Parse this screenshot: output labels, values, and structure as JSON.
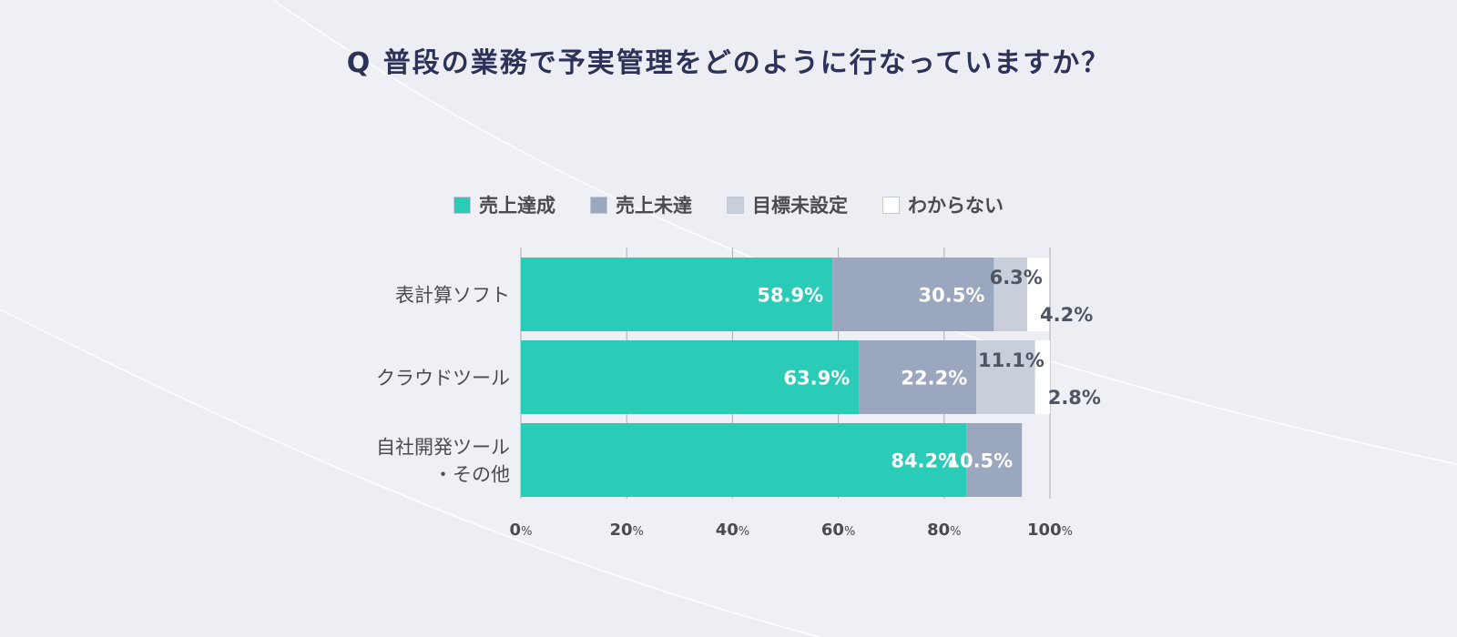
{
  "title": "Q 普段の業務で予実管理をどのように行なっていますか？",
  "colors": {
    "background": "#eceef4",
    "title": "#2d3358",
    "text": "#4a4a4f",
    "grid": "#a9acb4"
  },
  "chart_data": {
    "type": "bar",
    "orientation": "horizontal",
    "stacked": true,
    "title": "Q 普段の業務で予実管理をどのように行なっていますか？",
    "categories": [
      [
        "表計算ソフト"
      ],
      [
        "クラウドツール"
      ],
      [
        "自社開発ツール",
        "・その他"
      ]
    ],
    "series": [
      {
        "name": "売上達成",
        "color": "#2acbb7",
        "values": [
          58.9,
          63.9,
          84.2
        ],
        "labels": [
          "58.9%",
          "63.9%",
          "84.2%"
        ]
      },
      {
        "name": "売上未達",
        "color": "#9ba7bf",
        "values": [
          30.5,
          22.2,
          10.5
        ],
        "labels": [
          "30.5%",
          "22.2%",
          "10.5%"
        ]
      },
      {
        "name": "目標未設定",
        "color": "#c9cfda",
        "values": [
          6.3,
          11.1,
          0
        ],
        "labels": [
          "6.3%",
          "11.1%",
          ""
        ]
      },
      {
        "name": "わからない",
        "color": "#ffffff",
        "values": [
          4.2,
          2.8,
          0
        ],
        "labels": [
          "4.2%",
          "2.8%",
          ""
        ]
      }
    ],
    "xlim": [
      0,
      100
    ],
    "ticks": [
      "0",
      "20",
      "40",
      "60",
      "80",
      "100"
    ],
    "tick_suffix": "%",
    "grid": true,
    "legend": "top"
  }
}
